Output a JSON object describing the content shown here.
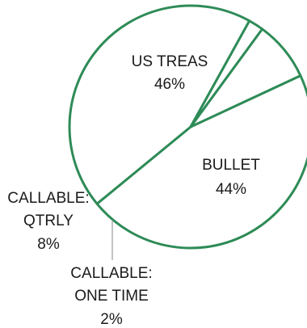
{
  "chart_data": {
    "type": "pie",
    "slices": [
      {
        "label": "US TREAS",
        "value": 46,
        "value_label": "46%"
      },
      {
        "label": "BULLET",
        "value": 44,
        "value_label": "44%"
      },
      {
        "label": "CALLABLE: ONE TIME",
        "label_lines": [
          "CALLABLE:",
          "ONE TIME"
        ],
        "value": 2,
        "value_label": "2%"
      },
      {
        "label": "CALLABLE: QTRLY",
        "label_lines": [
          "CALLABLE:",
          "QTRLY"
        ],
        "value": 8,
        "value_label": "8%"
      }
    ],
    "colors": {
      "fill": "#ffffff",
      "stroke": "#2e8b57",
      "text": "#1a1a1a",
      "leader": "#9a9a9a"
    }
  }
}
